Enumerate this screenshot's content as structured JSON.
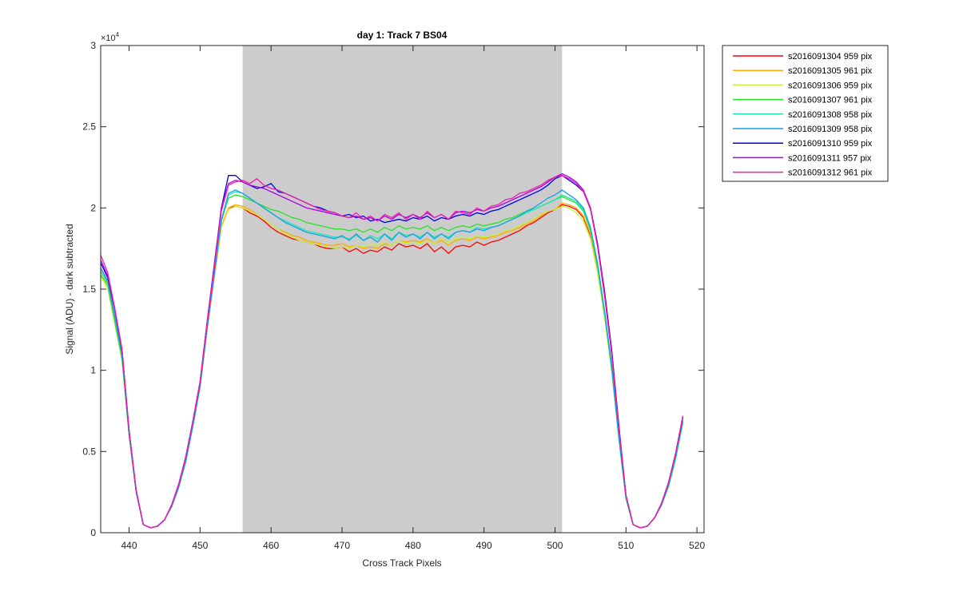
{
  "chart_data": {
    "type": "line",
    "title": "day 1: Track 7  BS04",
    "xlabel": "Cross Track Pixels",
    "ylabel": "Signal (ADU) - dark subtracted",
    "xlim": [
      436,
      521
    ],
    "ylim": [
      0,
      30000
    ],
    "xticks": [
      440,
      450,
      460,
      470,
      480,
      490,
      500,
      510,
      520
    ],
    "yticks": [
      0,
      5000,
      10000,
      15000,
      20000,
      25000,
      30000
    ],
    "ytick_labels": [
      "0",
      "0.5",
      "1",
      "1.5",
      "2",
      "2.5",
      "3"
    ],
    "y_exponent_base": "×10",
    "y_exponent_power": "4",
    "shaded_region": {
      "x0": 456,
      "x1": 501,
      "color": "#cccccc"
    },
    "grid": false,
    "legend_position": "outside-top-right",
    "series": [
      {
        "name": "s2016091304 959 pix",
        "color": "#ff0000",
        "left": [
          16300,
          15500,
          13200,
          10800,
          6000,
          2500,
          500,
          300,
          400,
          800,
          1700,
          2900,
          4500,
          6600,
          9000,
          12500,
          15700,
          18800,
          20000
        ],
        "plateau": [
          20100,
          20000,
          19700,
          19500,
          19200,
          18800,
          18500,
          18300,
          18100,
          18000,
          17900,
          17800,
          17600,
          17500,
          17500,
          17600,
          17300,
          17500,
          17200,
          17400,
          17300,
          17600,
          17400,
          17800,
          17600,
          17700,
          17500,
          17800,
          17300,
          17600,
          17200,
          17600,
          17700,
          17600,
          17900,
          17700,
          17900,
          18000,
          18200,
          18400,
          18600,
          18900,
          19100,
          19400,
          19700,
          19900
        ],
        "right": [
          20200,
          20100,
          19900,
          19400,
          18300,
          16200,
          13500,
          10200,
          6000,
          2200,
          500,
          300,
          400,
          900,
          1700,
          2900,
          4700,
          6900
        ]
      },
      {
        "name": "s2016091305 961 pix",
        "color": "#ffaa00",
        "left": [
          16100,
          15300,
          13100,
          10900,
          6100,
          2600,
          500,
          300,
          400,
          800,
          1700,
          2900,
          4600,
          6700,
          9100,
          12600,
          15800,
          18900,
          20000
        ],
        "plateau": [
          20200,
          20100,
          19900,
          19600,
          19300,
          19000,
          18700,
          18500,
          18300,
          18200,
          18000,
          17900,
          17800,
          17700,
          17700,
          17800,
          17600,
          17700,
          17500,
          17600,
          17500,
          17800,
          17700,
          18000,
          17900,
          18000,
          17900,
          18100,
          17800,
          18000,
          17700,
          18000,
          18100,
          18000,
          18200,
          18100,
          18200,
          18300,
          18500,
          18600,
          18800,
          19000,
          19200,
          19500,
          19800,
          19900
        ],
        "right": [
          20300,
          20200,
          20000,
          19500,
          18400,
          16300,
          13400,
          10100,
          5900,
          2100,
          500,
          300,
          400,
          900,
          1700,
          2900,
          4600,
          6800
        ]
      },
      {
        "name": "s2016091306 959 pix",
        "color": "#c8ee3c",
        "left": [
          15800,
          15000,
          12800,
          10600,
          6000,
          2500,
          500,
          300,
          400,
          800,
          1600,
          2800,
          4500,
          6600,
          9000,
          12500,
          15700,
          18800,
          19900
        ],
        "plateau": [
          20100,
          20000,
          19800,
          19600,
          19300,
          19000,
          18700,
          18400,
          18200,
          18000,
          17900,
          17800,
          17700,
          17600,
          17500,
          17600,
          17500,
          17700,
          17600,
          17800,
          17700,
          17900,
          17700,
          18000,
          17800,
          17900,
          17800,
          18000,
          17800,
          18100,
          17900,
          18100,
          18200,
          18100,
          18300,
          18200,
          18300,
          18400,
          18600,
          18700,
          18900,
          19100,
          19300,
          19600,
          19800,
          19900
        ],
        "right": [
          20100,
          20000,
          19700,
          19200,
          18100,
          16000,
          13200,
          9900,
          5800,
          2100,
          500,
          300,
          400,
          900,
          1700,
          2800,
          4500,
          6700
        ]
      },
      {
        "name": "s2016091307 961 pix",
        "color": "#22e622",
        "left": [
          15900,
          15200,
          13000,
          10700,
          6000,
          2500,
          500,
          300,
          400,
          800,
          1700,
          2900,
          4600,
          6700,
          9100,
          12700,
          16000,
          19200,
          20600
        ],
        "plateau": [
          20800,
          20700,
          20500,
          20300,
          20100,
          19900,
          19800,
          19600,
          19400,
          19300,
          19100,
          19000,
          18900,
          18800,
          18700,
          18700,
          18600,
          18700,
          18500,
          18700,
          18500,
          18800,
          18600,
          18900,
          18700,
          18800,
          18700,
          18900,
          18600,
          18800,
          18600,
          18800,
          18900,
          18800,
          19000,
          18900,
          19000,
          19100,
          19300,
          19400,
          19600,
          19800,
          19900,
          20100,
          20300,
          20500
        ],
        "right": [
          20700,
          20500,
          20300,
          19800,
          18600,
          16400,
          13400,
          10000,
          5800,
          2100,
          500,
          300,
          400,
          900,
          1700,
          2900,
          4600,
          6800
        ]
      },
      {
        "name": "s2016091308 958 pix",
        "color": "#1ee6b4",
        "left": [
          16100,
          15400,
          13200,
          10900,
          6100,
          2500,
          500,
          300,
          400,
          800,
          1700,
          2900,
          4600,
          6700,
          9100,
          12700,
          16000,
          19300,
          20800
        ],
        "plateau": [
          21000,
          20900,
          20600,
          20300,
          20000,
          19700,
          19400,
          19200,
          19000,
          18800,
          18600,
          18500,
          18400,
          18300,
          18200,
          18200,
          18100,
          18300,
          18000,
          18300,
          18100,
          18400,
          18100,
          18500,
          18300,
          18400,
          18200,
          18500,
          18200,
          18400,
          18200,
          18500,
          18600,
          18500,
          18800,
          18700,
          18800,
          18900,
          19100,
          19300,
          19500,
          19700,
          19900,
          20100,
          20300,
          20500
        ],
        "right": [
          20800,
          20600,
          20400,
          19900,
          18700,
          16500,
          13500,
          10100,
          5800,
          2100,
          500,
          300,
          400,
          900,
          1700,
          2900,
          4600,
          6800
        ]
      },
      {
        "name": "s2016091309 958 pix",
        "color": "#14a0e6",
        "left": [
          16300,
          15500,
          13300,
          11000,
          6100,
          2500,
          500,
          300,
          400,
          800,
          1600,
          2800,
          4400,
          6600,
          9000,
          12600,
          15900,
          19200,
          20900
        ],
        "plateau": [
          21100,
          20900,
          20600,
          20300,
          20000,
          19700,
          19400,
          19100,
          18900,
          18700,
          18500,
          18400,
          18300,
          18200,
          18100,
          18300,
          18000,
          18400,
          18000,
          18200,
          17900,
          18400,
          18000,
          18500,
          18200,
          18400,
          18100,
          18500,
          18100,
          18400,
          18100,
          18500,
          18600,
          18500,
          18700,
          18600,
          18800,
          18900,
          19100,
          19300,
          19500,
          19800,
          20000,
          20300,
          20600,
          20800
        ],
        "right": [
          21100,
          20800,
          20500,
          20000,
          18800,
          16600,
          13600,
          10200,
          5900,
          2200,
          500,
          300,
          400,
          900,
          1700,
          2900,
          4700,
          6900
        ]
      },
      {
        "name": "s2016091310 959 pix",
        "color": "#0000e6",
        "left": [
          16600,
          15700,
          13700,
          11300,
          6300,
          2600,
          500,
          300,
          400,
          800,
          1700,
          3000,
          4700,
          6900,
          9300,
          13000,
          16500,
          20000,
          22000
        ],
        "plateau": [
          22000,
          21600,
          21400,
          21200,
          21300,
          21500,
          21000,
          20900,
          20700,
          20500,
          20300,
          20100,
          20000,
          19800,
          19700,
          19500,
          19600,
          19400,
          19500,
          19200,
          19300,
          19100,
          19200,
          19300,
          19200,
          19400,
          19300,
          19500,
          19200,
          19400,
          19300,
          19500,
          19600,
          19500,
          19700,
          19600,
          19800,
          19900,
          20100,
          20300,
          20500,
          20700,
          20900,
          21100,
          21400,
          21800
        ],
        "right": [
          22000,
          21700,
          21400,
          21000,
          20000,
          17800,
          14800,
          11200,
          6600,
          2300,
          500,
          300,
          400,
          900,
          1800,
          3100,
          4900,
          7100
        ]
      },
      {
        "name": "s2016091311 957 pix",
        "color": "#aa00e6",
        "left": [
          16800,
          15800,
          13700,
          11200,
          6300,
          2600,
          500,
          300,
          400,
          800,
          1700,
          3000,
          4700,
          6900,
          9300,
          13000,
          16500,
          20000,
          21500
        ],
        "plateau": [
          21700,
          21600,
          21400,
          21300,
          21200,
          21000,
          20800,
          20600,
          20400,
          20200,
          20000,
          19900,
          19800,
          19700,
          19600,
          19500,
          19400,
          19500,
          19300,
          19400,
          19200,
          19500,
          19300,
          19600,
          19400,
          19600,
          19400,
          19700,
          19400,
          19600,
          19300,
          19700,
          19800,
          19700,
          19900,
          19800,
          20000,
          20100,
          20300,
          20500,
          20700,
          20900,
          21100,
          21300,
          21600,
          21900
        ],
        "right": [
          22100,
          21900,
          21600,
          21100,
          20000,
          17700,
          14600,
          11000,
          6400,
          2300,
          500,
          300,
          400,
          900,
          1800,
          3100,
          4900,
          7100
        ]
      },
      {
        "name": "s2016091312 961 pix",
        "color": "#f01eaa",
        "left": [
          17100,
          16000,
          13800,
          11300,
          6300,
          2600,
          500,
          300,
          400,
          800,
          1700,
          3000,
          4700,
          6900,
          9300,
          12900,
          16300,
          19800,
          21400
        ],
        "plateau": [
          21600,
          21700,
          21500,
          21800,
          21400,
          21200,
          21100,
          20900,
          20700,
          20500,
          20300,
          20100,
          19900,
          19800,
          19700,
          19500,
          19400,
          19700,
          19300,
          19500,
          19200,
          19600,
          19400,
          19700,
          19300,
          19600,
          19300,
          19800,
          19400,
          19600,
          19300,
          19800,
          19700,
          19600,
          20000,
          19800,
          20100,
          20200,
          20500,
          20600,
          20900,
          21000,
          21200,
          21400,
          21700,
          21900
        ],
        "right": [
          22000,
          21800,
          21500,
          21000,
          19900,
          17600,
          14500,
          10900,
          6400,
          2300,
          500,
          300,
          400,
          900,
          1800,
          3100,
          4900,
          7200
        ]
      }
    ]
  }
}
